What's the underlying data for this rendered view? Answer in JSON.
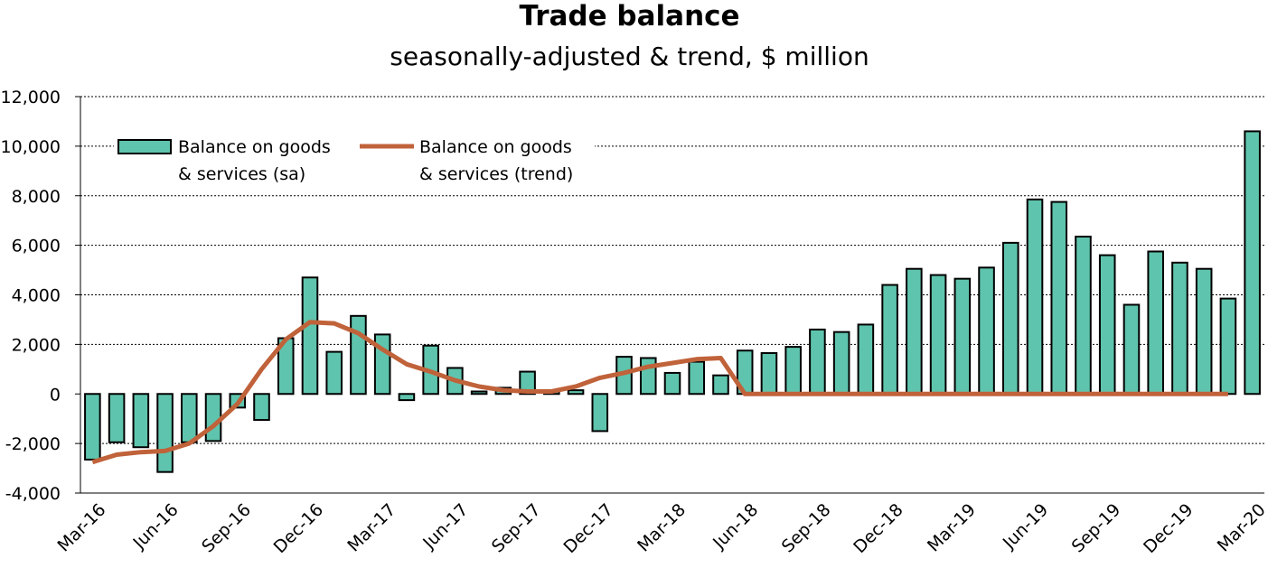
{
  "chart_data": {
    "type": "bar",
    "title": "Trade balance",
    "subtitle": "seasonally-adjusted & trend, $ million",
    "xlabel": "",
    "ylabel": "",
    "ylim": [
      -4000,
      12000
    ],
    "yticks": [
      -4000,
      -2000,
      0,
      2000,
      4000,
      6000,
      8000,
      10000,
      12000
    ],
    "ytick_labels": [
      "-4,000",
      "-2,000",
      "0",
      "2,000",
      "4,000",
      "6,000",
      "8,000",
      "10,000",
      "12,000"
    ],
    "grid": "horizontal dashed",
    "legend_placement": "top-left",
    "categories": [
      "Mar-16",
      "Apr-16",
      "May-16",
      "Jun-16",
      "Jul-16",
      "Aug-16",
      "Sep-16",
      "Oct-16",
      "Nov-16",
      "Dec-16",
      "Jan-17",
      "Feb-17",
      "Mar-17",
      "Apr-17",
      "May-17",
      "Jun-17",
      "Jul-17",
      "Aug-17",
      "Sep-17",
      "Oct-17",
      "Nov-17",
      "Dec-17",
      "Jan-18",
      "Feb-18",
      "Mar-18",
      "Apr-18",
      "May-18",
      "Jun-18",
      "Jul-18",
      "Aug-18",
      "Sep-18",
      "Oct-18",
      "Nov-18",
      "Dec-18",
      "Jan-19",
      "Feb-19",
      "Mar-19",
      "Apr-19",
      "May-19",
      "Jun-19",
      "Jul-19",
      "Aug-19",
      "Sep-19",
      "Oct-19",
      "Nov-19",
      "Dec-19",
      "Jan-20",
      "Feb-20",
      "Mar-20"
    ],
    "xtick_labels": [
      "Mar-16",
      "Jun-16",
      "Sep-16",
      "Dec-16",
      "Mar-17",
      "Jun-17",
      "Sep-17",
      "Dec-17",
      "Mar-18",
      "Jun-18",
      "Sep-18",
      "Dec-18",
      "Mar-19",
      "Jun-19",
      "Sep-19",
      "Dec-19",
      "Mar-20"
    ],
    "series": [
      {
        "name": "Balance on goods & services (sa)",
        "type": "bar",
        "color": "#5fc4ad",
        "values": [
          -2650,
          -1950,
          -2150,
          -3150,
          -1950,
          -1900,
          -550,
          -1050,
          2250,
          4700,
          1700,
          3150,
          2400,
          -250,
          1950,
          1050,
          100,
          250,
          900,
          150,
          150,
          -1500,
          1500,
          1450,
          850,
          1300,
          750,
          1750,
          1650,
          1900,
          2600,
          2500,
          2800,
          4400,
          5050,
          4800,
          4650,
          5100,
          6100,
          7850,
          7750,
          6350,
          5600,
          3600,
          5750,
          5300,
          5050,
          3850,
          10600
        ]
      },
      {
        "name": "Balance on goods & services (trend)",
        "type": "line",
        "color": "#c0623a",
        "values": [
          -2750,
          -2450,
          -2350,
          -2300,
          -2000,
          -1300,
          -400,
          1000,
          2200,
          2900,
          2850,
          2450,
          1800,
          1200,
          900,
          550,
          300,
          150,
          100,
          100,
          300,
          650,
          850,
          1100,
          1250,
          1400,
          1450,
          0,
          0,
          0,
          0,
          0,
          0,
          0,
          0,
          0,
          0,
          0,
          0,
          0,
          0,
          0,
          0,
          0,
          0,
          0,
          0,
          0,
          null
        ]
      }
    ],
    "legend": [
      {
        "line1": "Balance on goods",
        "line2": "& services (sa)"
      },
      {
        "line1": "Balance on goods",
        "line2": "& services (trend)"
      }
    ]
  }
}
